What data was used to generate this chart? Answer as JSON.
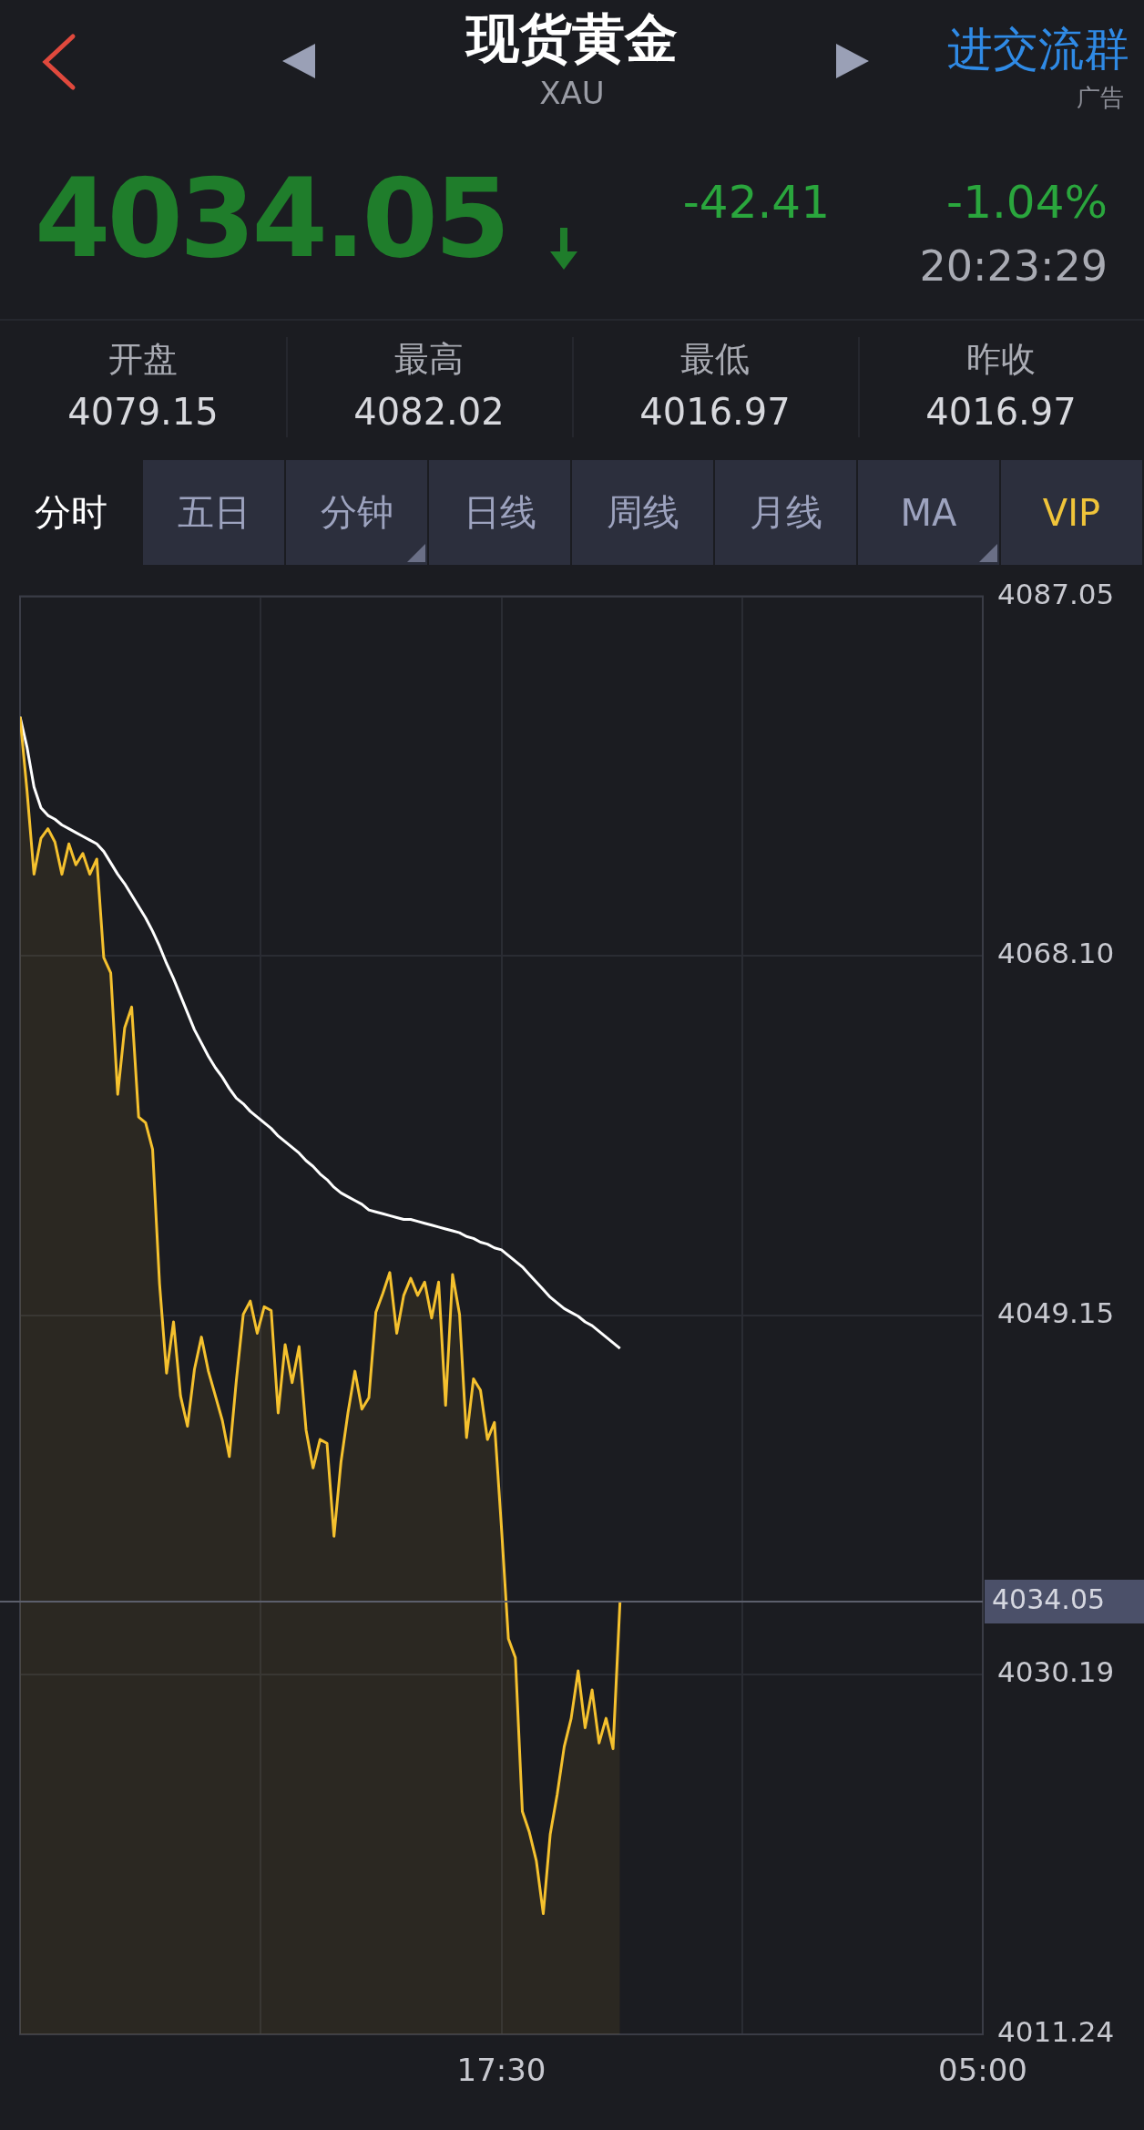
{
  "chart_data": {
    "type": "line",
    "title": "现货黄金",
    "subtitle": "XAU",
    "annotations": [
      "进交流群",
      "广告",
      "4034.05",
      "-42.41",
      "-1.04%",
      "20:23:29",
      "开盘",
      "4079.15",
      "最高",
      "4082.02",
      "最低",
      "4016.97",
      "昨收",
      "4016.97",
      "分时",
      "五日",
      "分钟",
      "日线",
      "周线",
      "月线",
      "MA",
      "VIP"
    ],
    "categories": [
      null,
      null,
      null,
      null,
      null,
      null,
      null,
      null,
      null,
      null,
      null,
      null,
      null,
      null,
      null,
      null,
      null,
      null,
      null,
      null,
      null,
      null,
      null,
      null,
      null,
      null,
      null,
      null,
      null,
      null,
      null,
      null,
      null,
      null,
      null,
      null,
      null,
      null,
      null,
      null,
      null,
      null,
      null,
      null,
      null,
      null,
      null,
      null,
      null,
      null,
      null,
      null,
      null,
      null,
      null,
      null,
      null,
      null,
      null,
      null,
      null,
      null,
      null,
      null,
      null,
      null,
      null,
      null,
      null,
      "17:30",
      null,
      null,
      null,
      null,
      null,
      null,
      null,
      null,
      null,
      null,
      null,
      null,
      null,
      null,
      null,
      null,
      null,
      null,
      null,
      null,
      null,
      null,
      null,
      null,
      null,
      null,
      null,
      null,
      null,
      null,
      null,
      null,
      null,
      null,
      null,
      null,
      null,
      null,
      null,
      null,
      null,
      null,
      null,
      null,
      null,
      null,
      null,
      null,
      null,
      null,
      null,
      null,
      null,
      null,
      null,
      null,
      null,
      null,
      null,
      null,
      null,
      null,
      null,
      null,
      null,
      null,
      null,
      null,
      "05:00"
    ],
    "ylim": [
      4011.24,
      4087.05
    ],
    "yticks": [
      4011.24,
      4030.19,
      4049.15,
      {
        "value": 4068.1,
        "label": "4068.10"
      },
      4087.05
    ],
    "grid": true,
    "ref_lines": [
      {
        "axis": "y",
        "value": 4034.05,
        "label": "4034.05"
      }
    ],
    "series": [
      {
        "type": "area",
        "color": "#f5c12e",
        "values": [
          4080.7,
          4076.8,
          4072.4,
          4074.3,
          4074.8,
          4074.1,
          4072.4,
          4074.0,
          4072.9,
          4073.5,
          4072.4,
          4073.2,
          4068.0,
          4067.2,
          4060.8,
          4064.3,
          4065.4,
          4059.6,
          4059.3,
          4057.9,
          4050.8,
          4046.1,
          4048.8,
          4044.9,
          4043.3,
          4046.3,
          4048.0,
          4046.2,
          4044.9,
          4043.6,
          4041.7,
          4045.7,
          4049.2,
          4049.9,
          4048.2,
          4049.6,
          4049.4,
          4044.0,
          4047.6,
          4045.6,
          4047.5,
          4043.1,
          4041.1,
          4042.6,
          4042.4,
          4037.5,
          4041.4,
          4044.0,
          4046.2,
          4044.2,
          4044.8,
          4049.3,
          4050.3,
          4051.4,
          4048.2,
          4050.2,
          4051.1,
          4050.2,
          4050.9,
          4049.0,
          4050.9,
          4044.4,
          4051.3,
          4049.2,
          4042.7,
          4045.8,
          4045.2,
          4042.6,
          4043.5,
          4038.0,
          4032.1,
          4031.1,
          4023.0,
          4021.9,
          4020.4,
          4017.6,
          4021.8,
          4023.9,
          4026.4,
          4027.9,
          4030.4,
          4027.4,
          4029.4,
          4026.6,
          4027.9,
          4026.3,
          4034.05,
          null,
          null,
          null,
          null,
          null,
          null,
          null,
          null,
          null,
          null,
          null,
          null,
          null,
          null,
          null,
          null,
          null,
          null,
          null,
          null,
          null,
          null,
          null,
          null,
          null,
          null,
          null,
          null,
          null,
          null,
          null,
          null,
          null,
          null,
          null,
          null,
          null,
          null,
          null,
          null,
          null,
          null,
          null,
          null,
          null,
          null,
          null,
          null,
          null,
          null,
          null,
          null
        ]
      },
      {
        "type": "line",
        "color": "#ffffff",
        "values": [
          4080.7,
          4079.1,
          4077.0,
          4075.9,
          4075.5,
          4075.3,
          4075.0,
          4074.8,
          4074.6,
          4074.4,
          4074.2,
          4074.0,
          4073.6,
          4073.0,
          4072.4,
          4071.9,
          4071.3,
          4070.7,
          4070.1,
          4069.4,
          4068.6,
          4067.7,
          4066.9,
          4066.0,
          4065.1,
          4064.2,
          4063.5,
          4062.8,
          4062.2,
          4061.7,
          4061.1,
          4060.6,
          4060.3,
          4059.9,
          4059.6,
          4059.3,
          4059.0,
          4058.6,
          4058.3,
          4058.0,
          4057.7,
          4057.3,
          4057.0,
          4056.6,
          4056.3,
          4055.9,
          4055.6,
          4055.4,
          4055.2,
          4055.0,
          4054.7,
          4054.6,
          4054.5,
          4054.4,
          4054.3,
          4054.2,
          4054.2,
          4054.1,
          4054.0,
          4053.9,
          4053.8,
          4053.7,
          4053.6,
          4053.5,
          4053.3,
          4053.2,
          4053.0,
          4052.9,
          4052.7,
          4052.6,
          4052.3,
          4052.0,
          4051.7,
          4051.3,
          4050.9,
          4050.5,
          4050.1,
          4049.8,
          4049.5,
          4049.3,
          4049.1,
          4048.8,
          4048.6,
          4048.3,
          4048.0,
          4047.7,
          4047.4,
          null,
          null,
          null,
          null,
          null,
          null,
          null,
          null,
          null,
          null,
          null,
          null,
          null,
          null,
          null,
          null,
          null,
          null,
          null,
          null,
          null,
          null,
          null,
          null,
          null,
          null,
          null,
          null,
          null,
          null,
          null,
          null,
          null,
          null,
          null,
          null,
          null,
          null,
          null,
          null,
          null,
          null,
          null,
          null,
          null,
          null,
          null,
          null,
          null,
          null,
          null,
          null
        ]
      }
    ]
  }
}
